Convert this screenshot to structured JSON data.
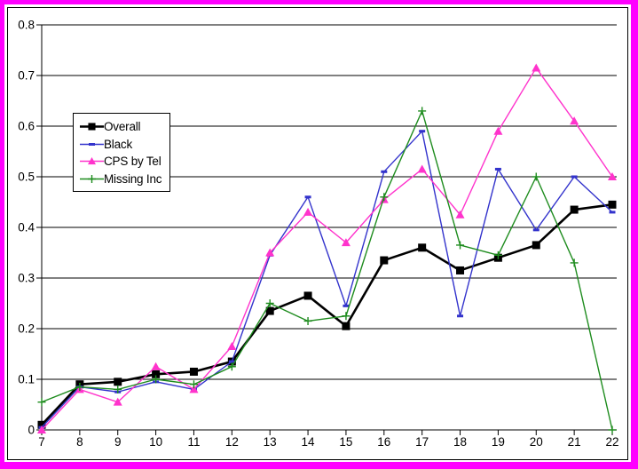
{
  "frame": {
    "outer_border_color": "#FF00FF",
    "inner_frame_color": "#000000",
    "background_color": "#FFFFFF"
  },
  "chart_data": {
    "type": "line",
    "title": "",
    "xlabel": "",
    "ylabel": "",
    "grid": "horizontal",
    "legend_position": "upper-left-inside",
    "ylim": [
      0,
      0.8
    ],
    "ytick_step": 0.1,
    "x": [
      7,
      8,
      9,
      10,
      11,
      12,
      13,
      14,
      15,
      16,
      17,
      18,
      19,
      20,
      21,
      22
    ],
    "xtick_labels": [
      "7",
      "8",
      "9",
      "10",
      "11",
      "12",
      "13",
      "14",
      "15",
      "16",
      "17",
      "18",
      "19",
      "20",
      "21",
      "22"
    ],
    "ytick_labels": [
      "0",
      "0.1",
      "0.2",
      "0.3",
      "0.4",
      "0.5",
      "0.6",
      "0.7",
      "0.8"
    ],
    "series": [
      {
        "name": "Overall",
        "color": "#000000",
        "marker": "square",
        "line_width": 2.6,
        "values": [
          0.01,
          0.09,
          0.095,
          0.11,
          0.115,
          0.135,
          0.235,
          0.265,
          0.205,
          0.335,
          0.36,
          0.315,
          0.34,
          0.365,
          0.435,
          0.445
        ]
      },
      {
        "name": "Black",
        "color": "#3333CC",
        "marker": "dash",
        "line_width": 1.4,
        "values": [
          0.005,
          0.085,
          0.075,
          0.095,
          0.08,
          0.135,
          0.345,
          0.46,
          0.245,
          0.51,
          0.59,
          0.225,
          0.515,
          0.395,
          0.5,
          0.43
        ]
      },
      {
        "name": "CPS by Tel",
        "color": "#FF33CC",
        "marker": "triangle",
        "line_width": 1.4,
        "values": [
          0.0,
          0.08,
          0.055,
          0.125,
          0.08,
          0.165,
          0.35,
          0.43,
          0.37,
          0.455,
          0.515,
          0.425,
          0.59,
          0.715,
          0.61,
          0.5
        ]
      },
      {
        "name": "Missing Inc",
        "color": "#1E8C1E",
        "marker": "plus",
        "line_width": 1.4,
        "values": [
          0.055,
          0.085,
          0.08,
          0.1,
          0.09,
          0.125,
          0.25,
          0.215,
          0.225,
          0.46,
          0.63,
          0.365,
          0.345,
          0.5,
          0.33,
          0.0
        ]
      }
    ]
  }
}
